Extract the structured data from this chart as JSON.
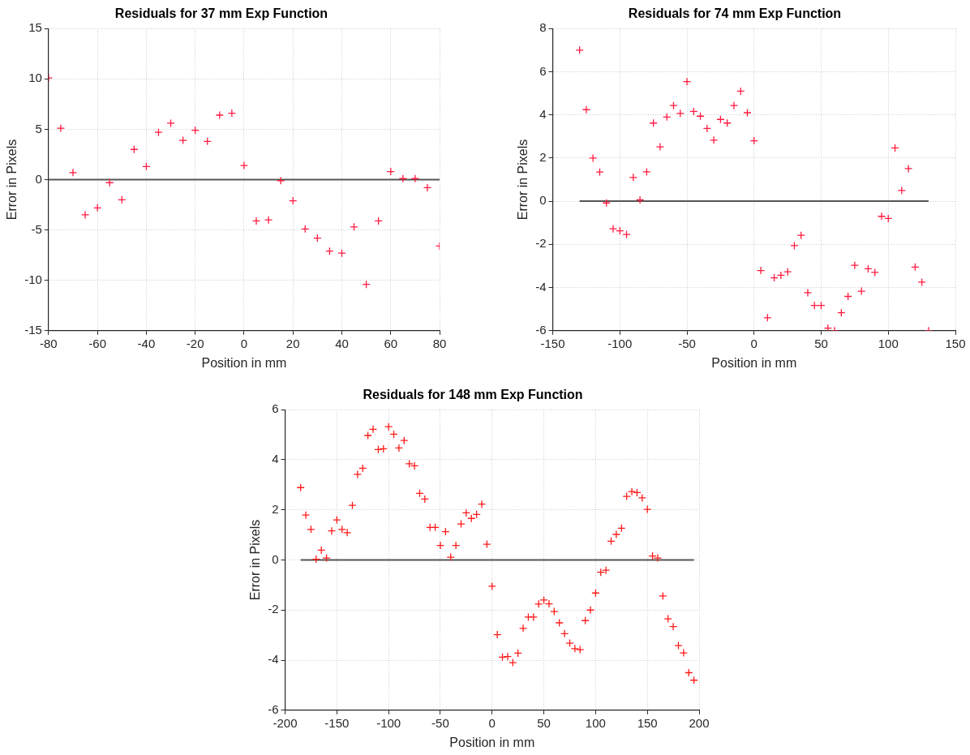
{
  "chart_data": [
    {
      "type": "scatter",
      "title": "Residuals for 37 mm Exp Function",
      "xlabel": "Position in mm",
      "ylabel": "Error in Pixels",
      "xlim": [
        -80,
        80
      ],
      "xticks": [
        -80,
        -60,
        -40,
        -20,
        0,
        20,
        40,
        60,
        80
      ],
      "ylim": [
        -15,
        15
      ],
      "yticks": [
        -15,
        -10,
        -5,
        0,
        5,
        10,
        15
      ],
      "grid": true,
      "legend": false,
      "series": [
        {
          "marker": "cross",
          "color": "#ff1a40",
          "x": [
            -80,
            -75,
            -70,
            -65,
            -60,
            -55,
            -50,
            -45,
            -40,
            -35,
            -30,
            -25,
            -20,
            -15,
            -10,
            -5,
            0,
            5,
            10,
            15,
            20,
            25,
            30,
            35,
            40,
            45,
            50,
            55,
            60,
            65,
            70,
            75,
            80
          ],
          "values": [
            10.1,
            5.1,
            0.7,
            -3.5,
            -2.8,
            -0.3,
            -2.0,
            3.0,
            1.3,
            4.7,
            5.6,
            3.9,
            4.9,
            3.8,
            6.4,
            6.6,
            1.4,
            -4.1,
            -4.0,
            -0.1,
            -2.1,
            -4.9,
            -5.8,
            -7.1,
            -7.3,
            -4.7,
            -10.4,
            -4.1,
            0.8,
            0.1,
            0.1,
            -0.8,
            -6.6
          ]
        },
        {
          "type": "line",
          "marker": "none",
          "color": "#555555",
          "x": [
            -80,
            80
          ],
          "values": [
            0,
            0
          ]
        }
      ]
    },
    {
      "type": "scatter",
      "title": "Residuals for 74 mm Exp Function",
      "xlabel": "Position in mm",
      "ylabel": "Error in Pixels",
      "xlim": [
        -150,
        150
      ],
      "xticks": [
        -150,
        -100,
        -50,
        0,
        50,
        100,
        150
      ],
      "ylim": [
        -6,
        8
      ],
      "yticks": [
        -6,
        -4,
        -2,
        0,
        2,
        4,
        6,
        8
      ],
      "grid": true,
      "legend": false,
      "series": [
        {
          "marker": "cross",
          "color": "#ff1a40",
          "x": [
            -130,
            -125,
            -120,
            -115,
            -110,
            -105,
            -100,
            -95,
            -90,
            -85,
            -80,
            -75,
            -70,
            -65,
            -60,
            -55,
            -50,
            -45,
            -40,
            -35,
            -30,
            -25,
            -20,
            -15,
            -10,
            -5,
            0,
            5,
            10,
            15,
            20,
            25,
            30,
            35,
            40,
            45,
            50,
            55,
            60,
            65,
            70,
            75,
            80,
            85,
            90,
            95,
            100,
            105,
            110,
            115,
            120,
            125,
            130
          ],
          "values": [
            7.0,
            4.24,
            2.0,
            1.35,
            -0.08,
            -1.28,
            -1.37,
            -1.54,
            1.1,
            0.06,
            1.36,
            3.62,
            2.52,
            3.9,
            4.43,
            4.07,
            5.54,
            4.16,
            3.94,
            3.37,
            2.83,
            3.79,
            3.62,
            4.43,
            5.1,
            4.1,
            2.8,
            -3.21,
            -5.4,
            -3.55,
            -3.43,
            -3.27,
            -2.06,
            -1.58,
            -4.24,
            -4.83,
            -4.83,
            -5.88,
            -6.0,
            -5.17,
            -4.41,
            -2.97,
            -4.17,
            -3.13,
            -3.3,
            -0.7,
            -0.8,
            2.47,
            0.5,
            1.51,
            -3.05,
            -3.75,
            -6.0
          ]
        },
        {
          "type": "line",
          "marker": "none",
          "color": "#555555",
          "x": [
            -130,
            130
          ],
          "values": [
            0,
            0
          ]
        }
      ]
    },
    {
      "type": "scatter",
      "title": "Residuals for 148 mm Exp Function",
      "xlabel": "Position in mm",
      "ylabel": "Error in Pixels",
      "xlim": [
        -200,
        200
      ],
      "xticks": [
        -200,
        -150,
        -100,
        -50,
        0,
        50,
        100,
        150,
        200
      ],
      "ylim": [
        -6,
        6
      ],
      "yticks": [
        -6,
        -4,
        -2,
        0,
        2,
        4,
        6
      ],
      "grid": true,
      "legend": false,
      "series": [
        {
          "marker": "cross",
          "color": "#ff1a1a",
          "x": [
            -185,
            -180,
            -175,
            -170,
            -165,
            -160,
            -155,
            -150,
            -145,
            -140,
            -135,
            -130,
            -125,
            -120,
            -115,
            -110,
            -105,
            -100,
            -95,
            -90,
            -85,
            -80,
            -75,
            -70,
            -65,
            -60,
            -55,
            -50,
            -45,
            -40,
            -35,
            -30,
            -25,
            -20,
            -15,
            -10,
            -5,
            0,
            5,
            10,
            15,
            20,
            25,
            30,
            35,
            40,
            45,
            50,
            55,
            60,
            65,
            70,
            75,
            80,
            85,
            90,
            95,
            100,
            105,
            110,
            115,
            120,
            125,
            130,
            135,
            140,
            145,
            150,
            155,
            160,
            165,
            170,
            175,
            180,
            185,
            190,
            195
          ],
          "values": [
            2.89,
            1.79,
            1.22,
            0.03,
            0.39,
            0.08,
            1.16,
            1.6,
            1.22,
            1.09,
            2.18,
            3.42,
            3.66,
            4.97,
            5.22,
            4.41,
            4.44,
            5.32,
            5.02,
            4.47,
            4.77,
            3.84,
            3.76,
            2.66,
            2.43,
            1.3,
            1.3,
            0.58,
            1.13,
            0.11,
            0.58,
            1.44,
            1.88,
            1.66,
            1.82,
            2.23,
            0.63,
            -1.05,
            -2.98,
            -3.88,
            -3.86,
            -4.1,
            -3.72,
            -2.73,
            -2.28,
            -2.28,
            -1.76,
            -1.6,
            -1.75,
            -2.06,
            -2.51,
            -2.94,
            -3.32,
            -3.54,
            -3.58,
            -2.42,
            -2.0,
            -1.32,
            -0.49,
            -0.41,
            0.75,
            1.02,
            1.27,
            2.54,
            2.73,
            2.69,
            2.48,
            2.02,
            0.16,
            0.08,
            -1.44,
            -2.35,
            -2.66,
            -3.42,
            -3.71,
            -4.5,
            -4.8
          ]
        },
        {
          "type": "line",
          "marker": "none",
          "color": "#555555",
          "x": [
            -185,
            195
          ],
          "values": [
            0,
            0
          ]
        }
      ]
    }
  ]
}
